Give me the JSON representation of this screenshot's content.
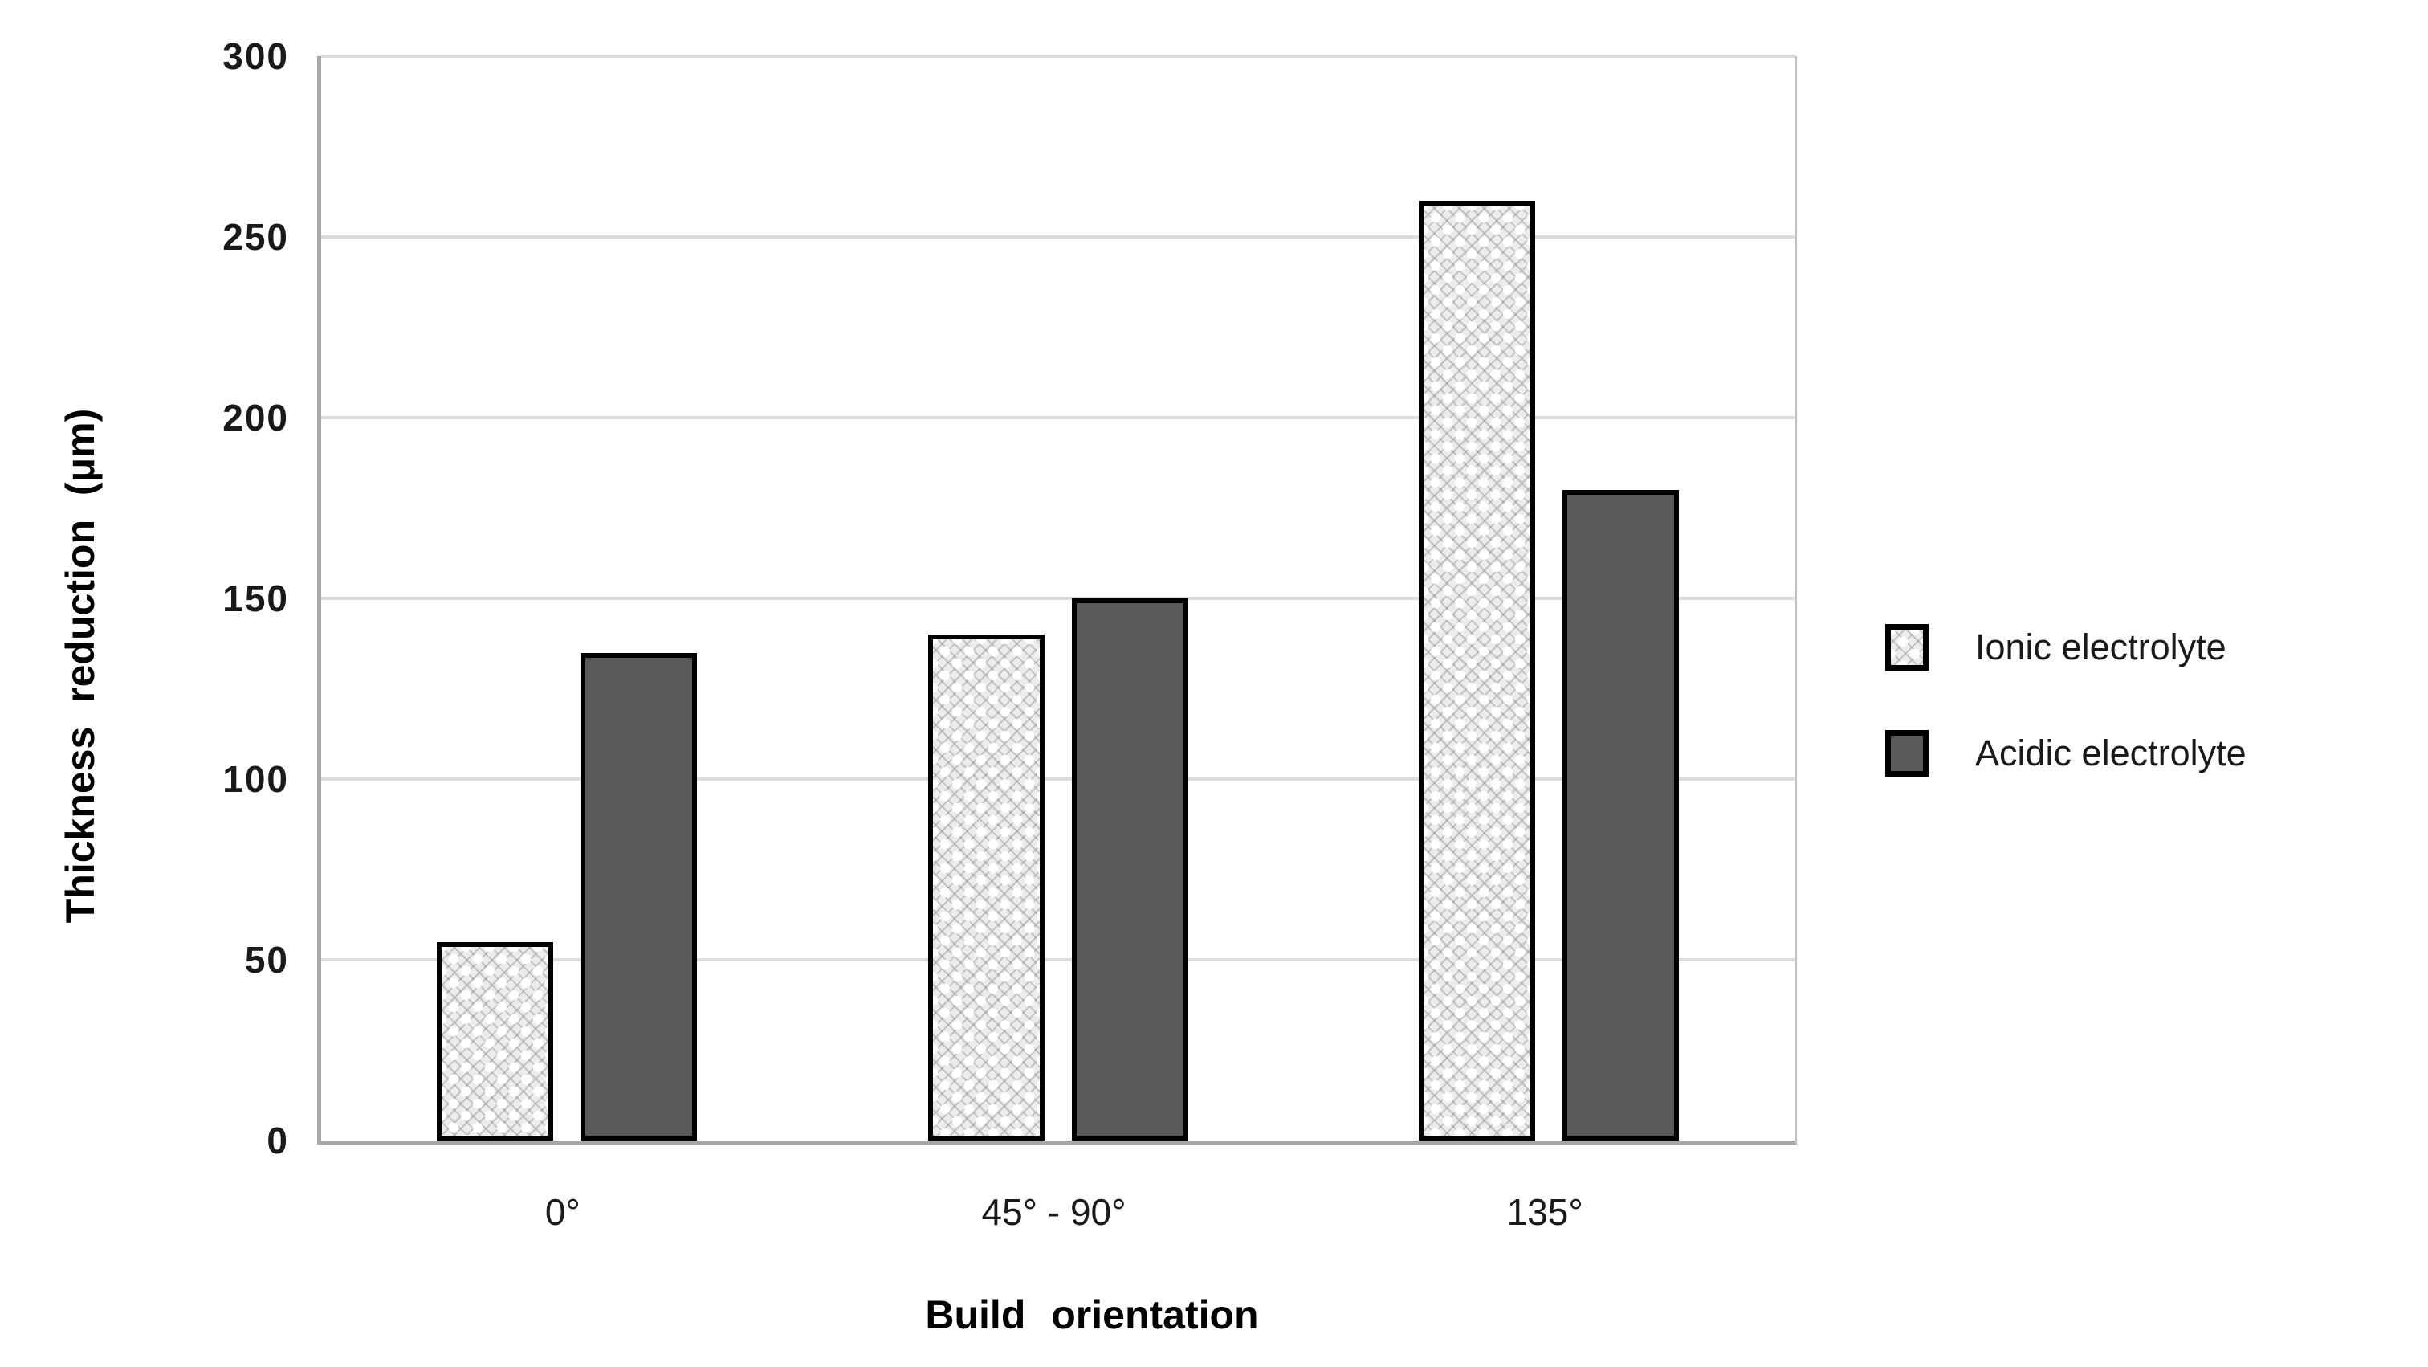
{
  "chart_data": {
    "type": "bar",
    "title": "",
    "categories": [
      "0°",
      "45° - 90°",
      "135°"
    ],
    "series": [
      {
        "name": "Ionic electrolyte",
        "values": [
          55,
          140,
          260
        ],
        "fill": "pattern",
        "color": "#ececec"
      },
      {
        "name": "Acidic electrolyte",
        "values": [
          135,
          150,
          180
        ],
        "fill": "solid",
        "color": "#595959"
      }
    ],
    "xlabel": "Build orientation",
    "ylabel": "Thickness reduction (μm)",
    "ylim": [
      0,
      300
    ],
    "yticks": [
      0,
      50,
      100,
      150,
      200,
      250,
      300
    ],
    "grid": "horizontal",
    "legend_position": "right"
  },
  "colors": {
    "background": "#ffffff",
    "axis_line": "#a6a6a6",
    "gridline": "#dcdcdc",
    "bar_border": "#000000",
    "dark_bar": "#595959",
    "text": "#1a1a1a"
  }
}
